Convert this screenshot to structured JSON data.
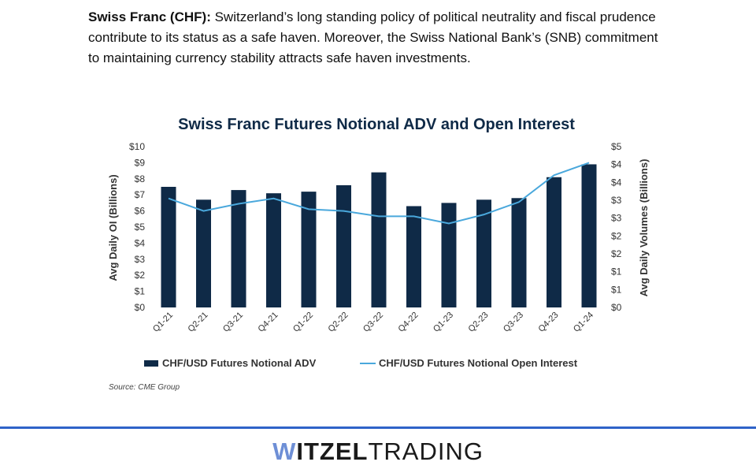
{
  "intro": {
    "lead": "Swiss Franc (CHF):",
    "text": " Switzerland’s long standing policy of political neutrality and fiscal prudence contribute to its status as a safe haven. Moreover, the Swiss National Bank’s (SNB) commitment to maintaining currency stability attracts safe haven investments."
  },
  "chart_data": {
    "type": "bar+line",
    "title": "Swiss Franc Futures Notional ADV and Open Interest",
    "categories": [
      "Q1-21",
      "Q2-21",
      "Q3-21",
      "Q4-21",
      "Q1-22",
      "Q2-22",
      "Q3-22",
      "Q4-22",
      "Q1-23",
      "Q2-23",
      "Q3-23",
      "Q4-23",
      "Q1-24"
    ],
    "series": [
      {
        "name": "CHF/USD Futures Notional ADV",
        "kind": "bar",
        "axis": "left",
        "color": "#0f2a47",
        "values": [
          7.5,
          6.7,
          7.3,
          7.1,
          7.2,
          7.6,
          8.4,
          6.3,
          6.5,
          6.7,
          6.8,
          8.1,
          8.9
        ]
      },
      {
        "name": "CHF/USD Futures Notional Open Interest",
        "kind": "line",
        "axis": "right",
        "color": "#4aa8dc",
        "values": [
          3.05,
          2.7,
          2.9,
          3.05,
          2.75,
          2.7,
          2.55,
          2.55,
          2.35,
          2.6,
          2.95,
          3.7,
          4.05
        ]
      }
    ],
    "y_left": {
      "label": "Avg Daily OI (Billions)",
      "min": 0,
      "max": 10,
      "ticks": [
        "$0",
        "$1",
        "$2",
        "$3",
        "$4",
        "$5",
        "$6",
        "$7",
        "$8",
        "$9",
        "$10"
      ]
    },
    "y_right": {
      "label": "Avg Daily Volumes (Billions)",
      "min": 0,
      "max": 4.5,
      "ticks": [
        "$0",
        "$1",
        "$1",
        "$2",
        "$2",
        "$3",
        "$3",
        "$4",
        "$4",
        "$5"
      ]
    },
    "legend": [
      "CHF/USD Futures Notional ADV",
      "CHF/USD Futures Notional Open Interest"
    ],
    "source": "Source: CME Group"
  },
  "footer": {
    "logo_w": "W",
    "logo_itzel": "ITZEL",
    "logo_trading": "TRADING"
  },
  "colors": {
    "bar": "#0f2a47",
    "line": "#4aa8dc",
    "title": "#0f2a47",
    "footer_line": "#2f63c8",
    "logo_accent": "#6e8fd6"
  }
}
